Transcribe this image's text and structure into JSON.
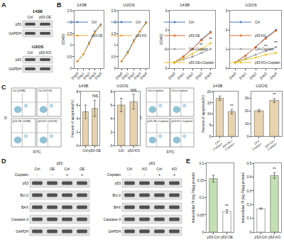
{
  "panel_labels": [
    "A",
    "B",
    "C",
    "D",
    "E"
  ],
  "blots_A": [
    {
      "cell": "143B",
      "lanes": [
        "Ctrl",
        "p53-OE"
      ],
      "proteins": [
        "p53",
        "GAPDH"
      ]
    },
    {
      "cell": "U2OS",
      "lanes": [
        "Ctrl",
        "p53-KO"
      ],
      "proteins": [
        "p53",
        "GAPDH"
      ]
    }
  ],
  "blots_D": [
    {
      "header": "p53",
      "lanes": [
        "Ctrl",
        "OE",
        "Ctrl",
        "OE"
      ],
      "treatment": "Cisplatin",
      "signs": [
        "-",
        "-",
        "+",
        "+"
      ],
      "proteins": [
        "p53",
        "Bcl-2",
        "BAX",
        "Caspase-3",
        "GAPDH"
      ]
    },
    {
      "header": "p53",
      "lanes": [
        "Ctrl",
        "KO",
        "Ctrl",
        "KO"
      ],
      "treatment": "Cisplatin",
      "signs": [
        "-",
        "-",
        "+",
        "+"
      ],
      "proteins": [
        "p53",
        "Bcl-2",
        "BAX",
        "Caspase-3",
        "GAPDH"
      ]
    }
  ],
  "flow_C": {
    "x_label": "FITC",
    "y_label": "PI",
    "groups": [
      [
        "Ctrl (143B)",
        "Ctrl (U2OS)",
        "p53-OE (143B)",
        "p53-KO (U2OS)"
      ],
      [
        "Ctrl+Cisplatin",
        "Ctrl+Cisplatin",
        "p53-OE+Cisplatin",
        "p53-KO+Cisplatin"
      ]
    ]
  },
  "chart_data": [
    {
      "type": "line",
      "title": "143B",
      "y_label": "OD450",
      "categories": [
        "Day0",
        "Day1",
        "Day2",
        "Day3",
        "Day4"
      ],
      "series": [
        {
          "name": "Ctrl",
          "color": "#4a7ebb",
          "values": [
            0.3,
            0.6,
            1.1,
            1.6,
            1.9
          ]
        },
        {
          "name": "p53-OE",
          "color": "#e8a33a",
          "values": [
            0.3,
            0.6,
            1.05,
            1.55,
            1.85
          ]
        }
      ],
      "ylim": [
        0,
        2.5
      ],
      "yticks": [
        0,
        0.5,
        1,
        1.5,
        2,
        2.5
      ],
      "legend": "top left"
    },
    {
      "type": "line",
      "title": "U2OS",
      "categories": [
        "Day0",
        "Day1",
        "Day2",
        "Day3",
        "Day4"
      ],
      "series": [
        {
          "name": "Ctrl",
          "color": "#4a7ebb",
          "values": [
            0.3,
            0.7,
            1.2,
            1.6,
            2.0
          ]
        },
        {
          "name": "p53-KO",
          "color": "#e8a33a",
          "values": [
            0.3,
            0.65,
            1.15,
            1.6,
            1.95
          ]
        }
      ],
      "ylim": [
        0,
        2.5
      ],
      "yticks": [
        0,
        0.5,
        1,
        1.5,
        2,
        2.5
      ],
      "legend": "top left"
    },
    {
      "type": "line",
      "title": "143B",
      "y_label": "OD450",
      "categories": [
        "Day0",
        "Day1",
        "Day2",
        "Day3",
        "Day4"
      ],
      "series": [
        {
          "name": "Ctrl",
          "color": "#4a7ebb",
          "values": [
            0.3,
            0.6,
            1.0,
            1.5,
            1.9
          ]
        },
        {
          "name": "p53-OE",
          "color": "#e06c2c",
          "values": [
            0.3,
            0.6,
            1.0,
            1.45,
            1.85
          ]
        },
        {
          "name": "Ctrl+Cisplatin",
          "color": "#9a9a9a",
          "values": [
            0.3,
            0.45,
            0.6,
            0.8,
            1.0
          ]
        },
        {
          "name": "p53-OE+Cisplatin",
          "color": "#e8c22a",
          "values": [
            0.3,
            0.5,
            0.75,
            1.0,
            1.3
          ]
        }
      ],
      "ylim": [
        0,
        3
      ],
      "yticks": [
        0,
        1,
        2,
        3
      ],
      "legend": "top left",
      "annotations": [
        {
          "category": "Day3",
          "y": 1.05,
          "text": "**"
        },
        {
          "category": "Day4",
          "y": 1.35,
          "text": "**"
        }
      ]
    },
    {
      "type": "line",
      "title": "U2OS",
      "categories": [
        "Day0",
        "Day1",
        "Day2",
        "Day3",
        "Day4"
      ],
      "series": [
        {
          "name": "Ctrl",
          "color": "#4a7ebb",
          "values": [
            0.3,
            0.65,
            1.1,
            1.6,
            2.0
          ]
        },
        {
          "name": "p53-KO",
          "color": "#e06c2c",
          "values": [
            0.3,
            0.65,
            1.1,
            1.55,
            1.95
          ]
        },
        {
          "name": "Ctrl+Cisplatin",
          "color": "#9a9a9a",
          "values": [
            0.3,
            0.5,
            0.7,
            0.9,
            1.1
          ]
        },
        {
          "name": "p53-KO+Cisplatin",
          "color": "#e8c22a",
          "values": [
            0.3,
            0.45,
            0.55,
            0.7,
            0.8
          ]
        }
      ],
      "ylim": [
        0,
        3
      ],
      "yticks": [
        0,
        1,
        2,
        3
      ],
      "legend": "top left",
      "annotations": [
        {
          "category": "Day3",
          "y": 0.95,
          "text": "**"
        },
        {
          "category": "Day4",
          "y": 1.15,
          "text": "**"
        }
      ]
    },
    {
      "type": "bar",
      "title": "143B",
      "y_label": "Percent of apoptosis(%)",
      "categories": [
        "Ctrl",
        "p53-OE"
      ],
      "values": [
        5,
        5.5
      ],
      "errors": [
        1,
        1.2
      ],
      "color": "#e8d3b0",
      "ylim": [
        0,
        8
      ],
      "yticks": [
        0,
        2,
        4,
        6,
        8
      ],
      "annotations": [
        {
          "category": "p53-OE",
          "y": 6.8,
          "text": "NS"
        }
      ]
    },
    {
      "type": "bar",
      "title": "U2OS",
      "categories": [
        "Ctrl",
        "p53-KO"
      ],
      "values": [
        6,
        6.5
      ],
      "errors": [
        1,
        1.1
      ],
      "color": "#e8d3b0",
      "ylim": [
        0,
        8
      ],
      "yticks": [
        0,
        2,
        4,
        6,
        8
      ],
      "annotations": [
        {
          "category": "p53-KO",
          "y": 7.7,
          "text": "NS"
        }
      ]
    },
    {
      "type": "bar",
      "title": "143B",
      "y_label": "Percent of apoptosis(%)",
      "categories": [
        "Ctrl+Cisplatin",
        "p53-OE+Cisplatin"
      ],
      "values": [
        17,
        11
      ],
      "errors": [
        1,
        1
      ],
      "color": "#e8d3b0",
      "ylim": [
        0,
        20
      ],
      "yticks": [
        0,
        5,
        10,
        15,
        20
      ],
      "annotations": [
        {
          "category": "p53-OE+Cisplatin",
          "y": 12.2,
          "text": "**"
        }
      ]
    },
    {
      "type": "bar",
      "title": "U2OS",
      "categories": [
        "Ctrl+Cisplatin",
        "p53-KO+Cisplatin"
      ],
      "values": [
        20,
        28
      ],
      "errors": [
        1,
        1.5
      ],
      "color": "#e8d3b0",
      "ylim": [
        0,
        35
      ],
      "yticks": [
        0,
        10,
        20,
        30
      ],
      "annotations": [
        {
          "category": "p53-KO+Cisplatin",
          "y": 29.8,
          "text": "**"
        }
      ]
    },
    {
      "type": "bar",
      "y_label": "Intracellular Pt (ng Pt/μg protein)",
      "categories": [
        "p53-Ctrl",
        "p53-OE"
      ],
      "values": [
        0.155,
        0.06
      ],
      "errors": [
        0.01,
        0.005
      ],
      "colors": [
        "#c5dfb4",
        "#ffffff"
      ],
      "ylim": [
        0,
        0.2
      ],
      "yticks": [
        0,
        0.05,
        0.1,
        0.15,
        0.2
      ],
      "annotations": [
        {
          "category": "p53-OE",
          "y": 0.067,
          "text": "**"
        }
      ]
    },
    {
      "type": "bar",
      "y_label": "Intracellular Pt (ng Pt/μg protein)",
      "categories": [
        "p53-Ctrl",
        "p53-KO"
      ],
      "values": [
        0.17,
        0.41
      ],
      "errors": [
        0.005,
        0.02
      ],
      "colors": [
        "#ffffff",
        "#c5dfb4"
      ],
      "ylim": [
        0,
        0.5
      ],
      "yticks": [
        0,
        0.1,
        0.2,
        0.3,
        0.4,
        0.5
      ],
      "annotations": [
        {
          "category": "p53-KO",
          "y": 0.435,
          "text": "**"
        }
      ]
    }
  ]
}
